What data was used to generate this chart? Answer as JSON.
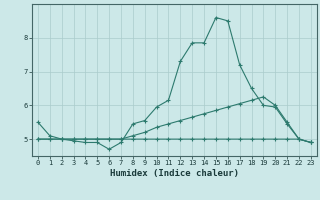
{
  "xlabel": "Humidex (Indice chaleur)",
  "bg_color": "#cce8e8",
  "grid_color": "#aacccc",
  "line_color": "#2d7a6e",
  "xlim": [
    -0.5,
    23.5
  ],
  "ylim": [
    4.5,
    9.0
  ],
  "xticks": [
    0,
    1,
    2,
    3,
    4,
    5,
    6,
    7,
    8,
    9,
    10,
    11,
    12,
    13,
    14,
    15,
    16,
    17,
    18,
    19,
    20,
    21,
    22,
    23
  ],
  "yticks": [
    5,
    6,
    7,
    8
  ],
  "line1_x": [
    0,
    1,
    2,
    3,
    4,
    5,
    6,
    7,
    8,
    9,
    10,
    11,
    12,
    13,
    14,
    15,
    16,
    17,
    18,
    19,
    20,
    21,
    22,
    23
  ],
  "line1_y": [
    5.5,
    5.1,
    5.0,
    4.95,
    4.9,
    4.9,
    4.7,
    4.9,
    5.45,
    5.55,
    5.95,
    6.15,
    7.3,
    7.85,
    7.85,
    8.6,
    8.5,
    7.2,
    6.5,
    6.0,
    5.95,
    5.45,
    5.0,
    4.9
  ],
  "line2_x": [
    0,
    1,
    2,
    3,
    4,
    5,
    6,
    7,
    8,
    9,
    10,
    11,
    12,
    13,
    14,
    15,
    16,
    17,
    18,
    19,
    20,
    21,
    22,
    23
  ],
  "line2_y": [
    5.0,
    5.0,
    5.0,
    5.0,
    5.0,
    5.0,
    5.0,
    5.0,
    5.0,
    5.0,
    5.0,
    5.0,
    5.0,
    5.0,
    5.0,
    5.0,
    5.0,
    5.0,
    5.0,
    5.0,
    5.0,
    5.0,
    5.0,
    4.9
  ],
  "line3_x": [
    0,
    1,
    2,
    3,
    4,
    5,
    6,
    7,
    8,
    9,
    10,
    11,
    12,
    13,
    14,
    15,
    16,
    17,
    18,
    19,
    20,
    21,
    22,
    23
  ],
  "line3_y": [
    5.0,
    5.0,
    5.0,
    5.0,
    5.0,
    5.0,
    5.0,
    5.0,
    5.1,
    5.2,
    5.35,
    5.45,
    5.55,
    5.65,
    5.75,
    5.85,
    5.95,
    6.05,
    6.15,
    6.25,
    6.0,
    5.5,
    5.0,
    4.9
  ],
  "tick_fontsize": 5.0,
  "xlabel_fontsize": 6.5
}
